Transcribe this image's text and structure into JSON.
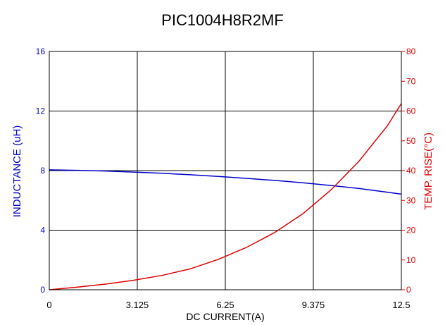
{
  "chart_data": {
    "type": "line",
    "title": "PIC1004H8R2MF",
    "xlabel": "DC CURRENT(A)",
    "ylabel": "INDUCTANCE (uH)",
    "y2label": "TEMP. RISE(°C)",
    "xlim": [
      0,
      12.5
    ],
    "ylim": [
      0,
      16
    ],
    "y2lim": [
      0,
      80
    ],
    "x_ticks": [
      "0",
      "3.125",
      "6.25",
      "9.375",
      "12.5"
    ],
    "y_ticks": [
      "0",
      "4",
      "8",
      "12",
      "16"
    ],
    "y2_ticks": [
      "0",
      "10",
      "20",
      "30",
      "40",
      "50",
      "60",
      "70",
      "80"
    ],
    "grid": true,
    "colors": {
      "inductance": "#0000cc",
      "temp": "#e00000",
      "grid": "#000000"
    },
    "series": [
      {
        "axis": "left",
        "color": "#0000cc",
        "x": [
          0,
          1,
          2,
          3,
          4,
          5,
          6,
          7,
          8,
          9,
          10,
          11,
          12,
          12.5
        ],
        "values": [
          8.05,
          8.02,
          7.97,
          7.9,
          7.82,
          7.72,
          7.61,
          7.48,
          7.34,
          7.18,
          7.0,
          6.8,
          6.55,
          6.42
        ]
      },
      {
        "axis": "right",
        "color": "#e00000",
        "x": [
          0,
          1,
          2,
          3,
          4,
          5,
          6,
          7,
          8,
          9,
          10,
          11,
          12,
          12.5
        ],
        "values": [
          0,
          0.9,
          1.9,
          3.2,
          4.8,
          7.0,
          10.2,
          14.2,
          19.2,
          25.5,
          33.5,
          43.2,
          55.0,
          62.5
        ]
      }
    ]
  }
}
